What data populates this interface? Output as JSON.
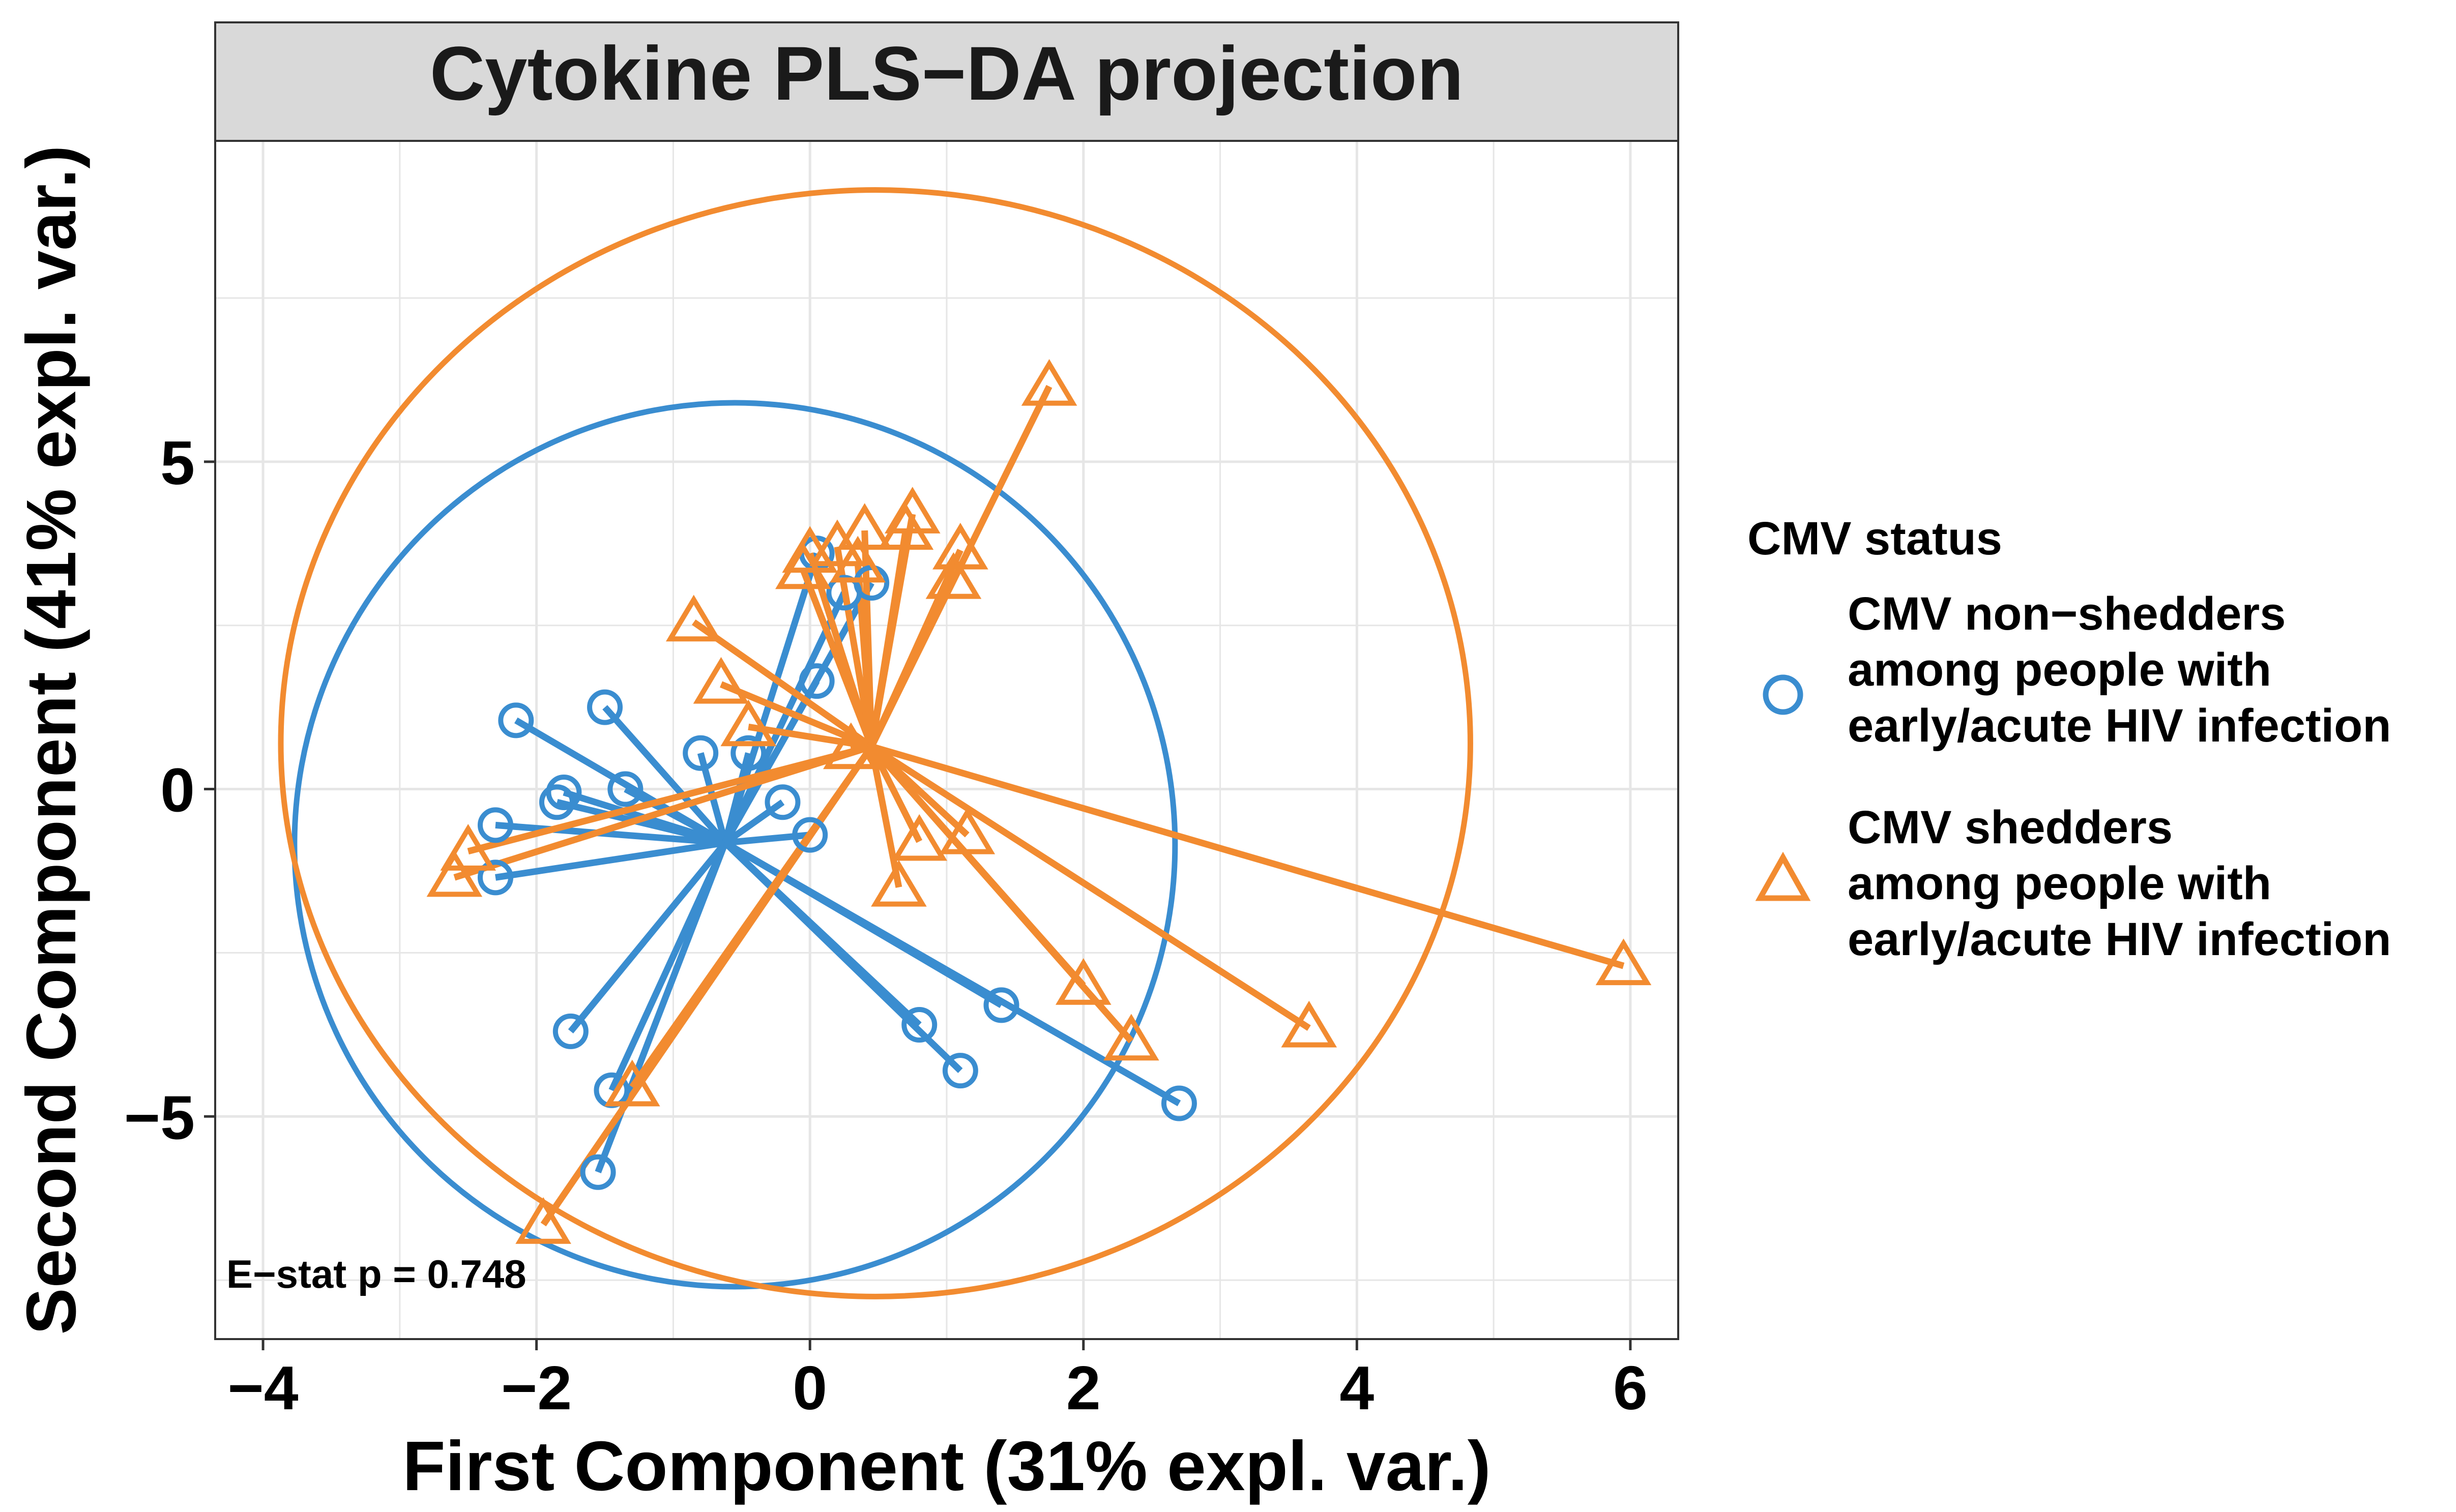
{
  "colors": {
    "non_shedders": "#3a8dd0",
    "shedders": "#f28b30",
    "grid": "#e6e6e6",
    "strip": "#d9d9d9",
    "axis_text": "#000000"
  },
  "chart_data": {
    "type": "scatter",
    "title": "Cytokine PLS−DA projection",
    "xlabel": "First Component (31% expl. var.)",
    "ylabel": "Second Component (41% expl. var.)",
    "xlim": [
      -4.35,
      6.35
    ],
    "ylim": [
      -8.4,
      9.9
    ],
    "x_ticks": [
      -4,
      -2,
      0,
      2,
      4,
      6
    ],
    "x_tick_labels": [
      "−4",
      "−2",
      "0",
      "2",
      "4",
      "6"
    ],
    "y_ticks": [
      -5,
      0,
      5
    ],
    "y_tick_labels": [
      "−5",
      "0",
      "5"
    ],
    "grid": true,
    "annotation": "E−stat p = 0.748",
    "legend": {
      "title": "CMV status",
      "position": "right",
      "entries": [
        {
          "key": "non_shedders",
          "lines": [
            "CMV non−shedders",
            "among people with",
            "early/acute HIV infection"
          ],
          "shape": "circle"
        },
        {
          "key": "shedders",
          "lines": [
            "CMV shedders",
            "among people with",
            "early/acute HIV infection"
          ],
          "shape": "triangle"
        }
      ]
    },
    "series": [
      {
        "name": "CMV non−shedders among people with early/acute HIV infection",
        "key": "non_shedders",
        "shape": "circle",
        "centroid": [
          -0.62,
          -0.82
        ],
        "ellipse": {
          "cx": -0.55,
          "cy": -0.85,
          "rx": 3.22,
          "ry": 6.75
        },
        "points": [
          [
            -2.15,
            1.05
          ],
          [
            -1.5,
            1.25
          ],
          [
            -0.8,
            0.55
          ],
          [
            -0.45,
            0.55
          ],
          [
            -1.8,
            -0.05
          ],
          [
            -1.85,
            -0.2
          ],
          [
            -1.35,
            0.0
          ],
          [
            -2.3,
            -0.55
          ],
          [
            -2.3,
            -1.35
          ],
          [
            -0.2,
            -0.2
          ],
          [
            0.0,
            -0.7
          ],
          [
            0.05,
            1.65
          ],
          [
            0.05,
            3.6
          ],
          [
            0.25,
            3.0
          ],
          [
            0.45,
            3.15
          ],
          [
            -1.75,
            -3.7
          ],
          [
            -1.45,
            -4.6
          ],
          [
            -1.55,
            -5.85
          ],
          [
            0.8,
            -3.6
          ],
          [
            1.1,
            -4.3
          ],
          [
            1.4,
            -3.3
          ],
          [
            2.7,
            -4.8
          ]
        ]
      },
      {
        "name": "CMV shedders among people with early/acute HIV infection",
        "key": "shedders",
        "shape": "triangle",
        "centroid": [
          0.45,
          0.65
        ],
        "ellipse": {
          "cx": 0.48,
          "cy": 0.7,
          "rx": 4.35,
          "ry": 8.45
        },
        "points": [
          [
            1.75,
            6.15
          ],
          [
            0.0,
            3.6
          ],
          [
            -0.05,
            3.35
          ],
          [
            0.2,
            3.7
          ],
          [
            0.35,
            3.45
          ],
          [
            0.4,
            3.95
          ],
          [
            0.7,
            3.95
          ],
          [
            0.75,
            4.2
          ],
          [
            1.1,
            3.65
          ],
          [
            1.05,
            3.2
          ],
          [
            -0.85,
            2.55
          ],
          [
            -0.65,
            1.6
          ],
          [
            -0.45,
            0.95
          ],
          [
            0.3,
            0.6
          ],
          [
            0.65,
            -1.5
          ],
          [
            0.8,
            -0.8
          ],
          [
            1.15,
            -0.7
          ],
          [
            2.0,
            -3.0
          ],
          [
            2.35,
            -3.85
          ],
          [
            3.65,
            -3.65
          ],
          [
            5.95,
            -2.7
          ],
          [
            -2.6,
            -1.35
          ],
          [
            -2.5,
            -0.95
          ],
          [
            -1.3,
            -4.55
          ],
          [
            -1.95,
            -6.65
          ]
        ]
      }
    ]
  }
}
